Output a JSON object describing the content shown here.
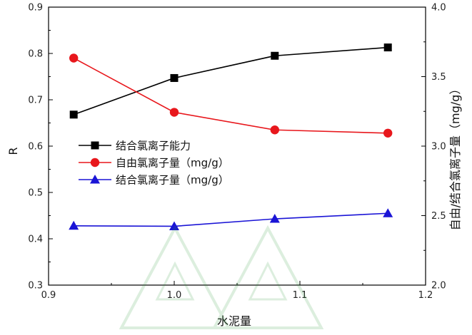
{
  "chart_data": {
    "type": "line",
    "xlabel": "水泥量",
    "ylabel_left": "R",
    "ylabel_right": "自由/结合氯离子量（mg/g）",
    "xlim": [
      0.9,
      1.2
    ],
    "xticks": [
      "0.9",
      "1.0",
      "1.1",
      "1.2"
    ],
    "ylim_left": [
      0.3,
      0.9
    ],
    "yticks_left": [
      "0.3",
      "0.4",
      "0.5",
      "0.6",
      "0.7",
      "0.8",
      "0.9"
    ],
    "ylim_right": [
      2.0,
      4.0
    ],
    "yticks_right": [
      "2.0",
      "2.5",
      "3.0",
      "3.5",
      "4.0"
    ],
    "legend_position": "center-left",
    "grid": false,
    "x": [
      0.92,
      1.0,
      1.08,
      1.17
    ],
    "series": [
      {
        "name": "结合氯离子能力",
        "axis": "left",
        "marker": "square",
        "color": "#000000",
        "values": [
          0.668,
          0.747,
          0.795,
          0.813
        ]
      },
      {
        "name": "自由氯离子量（mg/g）",
        "axis": "left",
        "marker": "circle",
        "color": "#e8171c",
        "values": [
          0.79,
          0.673,
          0.635,
          0.628
        ]
      },
      {
        "name": "结合氯离子量（mg/g）",
        "axis": "left",
        "marker": "triangle",
        "color": "#1a14d6",
        "values": [
          0.428,
          0.427,
          0.443,
          0.455
        ]
      }
    ]
  }
}
